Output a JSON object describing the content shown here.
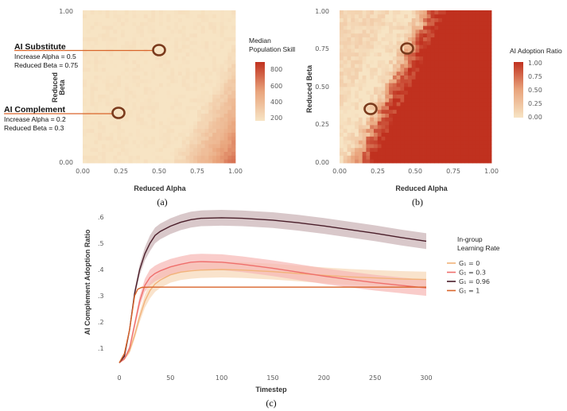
{
  "chart_data": [
    {
      "id": "a",
      "type": "heatmap",
      "caption": "(a)",
      "xlabel": "Reduced Alpha",
      "ylabel": "Reduced\nBeta",
      "x_ticks": [
        "0.00",
        "0.25",
        "0.50",
        "0.75",
        "1.00"
      ],
      "y_ticks": [
        "0.00",
        "1.00"
      ],
      "xlim": [
        0,
        1
      ],
      "ylim": [
        0,
        1
      ],
      "grid_size": 40,
      "colorbar": {
        "title": "Median\nPopulation Skill",
        "ticks": [
          "800",
          "600",
          "400",
          "200"
        ],
        "range": [
          150,
          880
        ],
        "low_color": "#f7e4c4",
        "high_color": "#c0311f"
      },
      "annotations": [
        {
          "title": "AI Substitute",
          "lines": [
            "Increase Alpha = 0.5",
            "Reduced Beta = 0.75"
          ],
          "alpha": 0.5,
          "beta": 0.75
        },
        {
          "title": "AI Complement",
          "lines": [
            "Increase Alpha = 0.2",
            "Reduced Beta = 0.3"
          ],
          "alpha": 0.24,
          "beta": 0.32
        }
      ]
    },
    {
      "id": "b",
      "type": "heatmap",
      "caption": "(b)",
      "xlabel": "Reduced Alpha",
      "ylabel": "Reduced Beta",
      "x_ticks": [
        "0.00",
        "0.25",
        "0.50",
        "0.75",
        "1.00"
      ],
      "y_ticks": [
        "0.00",
        "0.25",
        "0.50",
        "0.75",
        "1.00"
      ],
      "xlim": [
        0,
        1
      ],
      "ylim": [
        0,
        1
      ],
      "grid_size": 40,
      "colorbar": {
        "title": "AI Adoption Ratio",
        "ticks": [
          "1.00",
          "0.75",
          "0.50",
          "0.25",
          "0.00"
        ],
        "range": [
          0,
          1
        ],
        "low_color": "#f7e4c4",
        "high_color": "#c0311f"
      },
      "markers": [
        {
          "alpha": 0.44,
          "beta": 0.75
        },
        {
          "alpha": 0.2,
          "beta": 0.34
        }
      ]
    },
    {
      "id": "c",
      "type": "line",
      "caption": "(c)",
      "xlabel": "Timestep",
      "ylabel": "AI Complement Adoption Ratio",
      "x_ticks": [
        "0",
        "50",
        "100",
        "150",
        "200",
        "250",
        "300"
      ],
      "y_ticks": [
        ".1",
        ".2",
        ".3",
        ".4",
        ".5",
        ".6"
      ],
      "xlim": [
        0,
        300
      ],
      "ylim": [
        0.04,
        0.615
      ],
      "legend": {
        "title": "In-group\nLearning Rate",
        "position": "right"
      },
      "series": [
        {
          "name": "G₁ = 0",
          "color": "#f2b27a",
          "band": "#f6d7b6",
          "x": [
            0,
            5,
            10,
            15,
            20,
            25,
            30,
            35,
            40,
            50,
            60,
            70,
            80,
            100,
            120,
            150,
            175,
            200,
            225,
            250,
            275,
            300
          ],
          "y": [
            0.045,
            0.06,
            0.09,
            0.15,
            0.22,
            0.28,
            0.32,
            0.345,
            0.36,
            0.38,
            0.39,
            0.395,
            0.398,
            0.4,
            0.398,
            0.392,
            0.385,
            0.378,
            0.372,
            0.368,
            0.364,
            0.362
          ],
          "band_half": [
            0.0,
            0.005,
            0.01,
            0.015,
            0.02,
            0.025,
            0.03,
            0.03,
            0.03,
            0.03,
            0.03,
            0.03,
            0.03,
            0.03,
            0.03,
            0.03,
            0.03,
            0.03,
            0.03,
            0.03,
            0.03,
            0.03
          ]
        },
        {
          "name": "G₁ = 0.3",
          "color": "#ef6f6c",
          "band": "#f6b7b3",
          "x": [
            0,
            5,
            10,
            15,
            20,
            25,
            30,
            35,
            40,
            50,
            60,
            70,
            80,
            100,
            120,
            150,
            175,
            200,
            225,
            250,
            275,
            300
          ],
          "y": [
            0.045,
            0.06,
            0.1,
            0.19,
            0.28,
            0.34,
            0.37,
            0.385,
            0.395,
            0.41,
            0.42,
            0.428,
            0.43,
            0.428,
            0.42,
            0.405,
            0.39,
            0.375,
            0.362,
            0.35,
            0.34,
            0.33
          ],
          "band_half": [
            0.0,
            0.005,
            0.01,
            0.015,
            0.02,
            0.025,
            0.03,
            0.03,
            0.03,
            0.03,
            0.03,
            0.03,
            0.03,
            0.03,
            0.03,
            0.03,
            0.03,
            0.03,
            0.03,
            0.03,
            0.03,
            0.03
          ]
        },
        {
          "name": "G₁ = 0.96",
          "color": "#4a1e2a",
          "band": "#c9b0b4",
          "x": [
            0,
            5,
            10,
            15,
            20,
            25,
            30,
            35,
            40,
            50,
            60,
            70,
            80,
            100,
            120,
            150,
            175,
            200,
            225,
            250,
            275,
            300
          ],
          "y": [
            0.045,
            0.07,
            0.17,
            0.31,
            0.4,
            0.46,
            0.5,
            0.53,
            0.545,
            0.565,
            0.58,
            0.59,
            0.595,
            0.597,
            0.595,
            0.588,
            0.578,
            0.566,
            0.552,
            0.538,
            0.522,
            0.508
          ],
          "band_half": [
            0.0,
            0.005,
            0.01,
            0.015,
            0.02,
            0.025,
            0.03,
            0.03,
            0.03,
            0.03,
            0.03,
            0.03,
            0.03,
            0.03,
            0.03,
            0.03,
            0.03,
            0.03,
            0.03,
            0.03,
            0.03,
            0.03
          ]
        },
        {
          "name": "G₁ = 1",
          "color": "#d9652b",
          "band": null,
          "x": [
            0,
            5,
            10,
            15,
            18,
            22,
            30,
            300
          ],
          "y": [
            0.045,
            0.08,
            0.17,
            0.3,
            0.325,
            0.332,
            0.333,
            0.333
          ],
          "band_half": null
        }
      ]
    }
  ]
}
